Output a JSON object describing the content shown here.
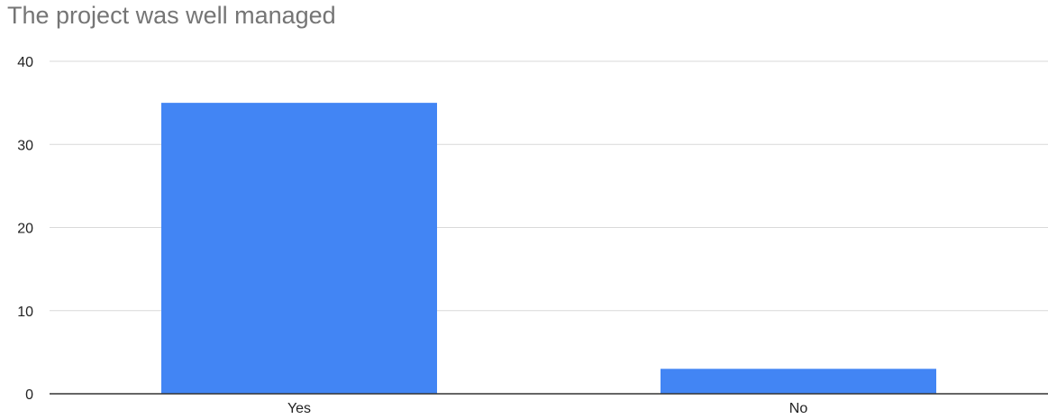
{
  "chart_data": {
    "type": "bar",
    "title": "The project was well managed",
    "xlabel": "",
    "ylabel": "",
    "categories": [
      "Yes",
      "No"
    ],
    "values": [
      35,
      3
    ],
    "ylim": [
      0,
      40
    ],
    "yticks": [
      "0",
      "10",
      "20",
      "30",
      "40"
    ],
    "grid": true,
    "legend": "none",
    "bar_color": "#4285F4",
    "grid_color": "#D9D9D9",
    "axis_color": "#333333"
  }
}
